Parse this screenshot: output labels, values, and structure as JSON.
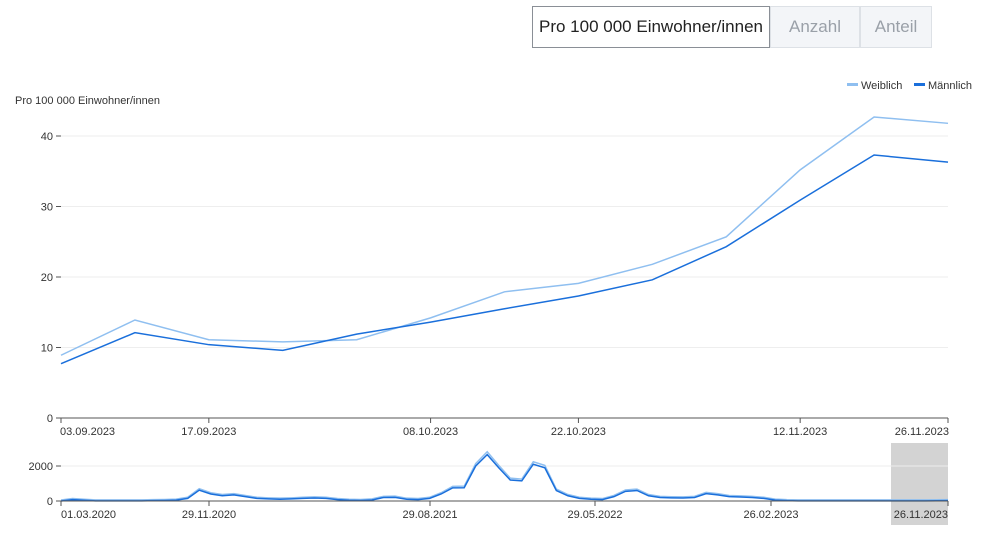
{
  "toggle": {
    "buttons": [
      {
        "label": "Pro 100 000 Einwohner/innen",
        "active": true
      },
      {
        "label": "Anzahl",
        "active": false
      },
      {
        "label": "Anteil",
        "active": false
      }
    ]
  },
  "colors": {
    "weiblich": "#8fbff0",
    "maennlich": "#1a6fdb",
    "selection": "#d3d3d3"
  },
  "chart_data": {
    "type": "line",
    "ylabel": "Pro 100 000 Einwohner/innen",
    "ylim": [
      0,
      45
    ],
    "yticks": [
      0,
      10,
      20,
      30,
      40
    ],
    "legend": {
      "placement": "top-right",
      "entries": [
        "Weiblich",
        "Männlich"
      ]
    },
    "x": [
      "03.09.2023",
      "10.09.2023",
      "17.09.2023",
      "24.09.2023",
      "01.10.2023",
      "08.10.2023",
      "15.10.2023",
      "22.10.2023",
      "29.10.2023",
      "05.11.2023",
      "12.11.2023",
      "19.11.2023",
      "26.11.2023"
    ],
    "xticks": [
      "03.09.2023",
      "17.09.2023",
      "08.10.2023",
      "22.10.2023",
      "12.11.2023",
      "26.11.2023"
    ],
    "series": [
      {
        "name": "Weiblich",
        "values": [
          8.9,
          13.9,
          11.1,
          10.8,
          11.1,
          14.2,
          17.9,
          19.1,
          21.8,
          25.7,
          35.2,
          42.7,
          41.8
        ]
      },
      {
        "name": "Männlich",
        "values": [
          7.7,
          12.1,
          10.4,
          9.6,
          11.9,
          13.6,
          15.5,
          17.3,
          19.6,
          24.3,
          30.9,
          37.3,
          36.3
        ]
      }
    ],
    "navigator": {
      "range": [
        "01.03.2020",
        "26.11.2023"
      ],
      "xticks": [
        "01.03.2020",
        "29.11.2020",
        "29.08.2021",
        "29.05.2022",
        "26.02.2023",
        "26.11.2023"
      ],
      "yticks": [
        0,
        2000
      ],
      "ylim": [
        0,
        3000
      ],
      "selection": [
        "03.09.2023",
        "26.11.2023"
      ],
      "values": [
        0,
        80,
        40,
        10,
        5,
        5,
        5,
        10,
        20,
        30,
        50,
        150,
        620,
        400,
        300,
        350,
        250,
        150,
        120,
        100,
        120,
        150,
        170,
        150,
        80,
        40,
        30,
        60,
        200,
        210,
        100,
        80,
        150,
        400,
        750,
        760,
        2000,
        2650,
        1900,
        1200,
        1150,
        2100,
        1900,
        600,
        300,
        150,
        100,
        80,
        250,
        550,
        600,
        300,
        200,
        180,
        170,
        200,
        420,
        350,
        250,
        230,
        200,
        150,
        50,
        20,
        10,
        10,
        8,
        8,
        5,
        5,
        5,
        5,
        5,
        5,
        8,
        10,
        15,
        20
      ]
    }
  }
}
